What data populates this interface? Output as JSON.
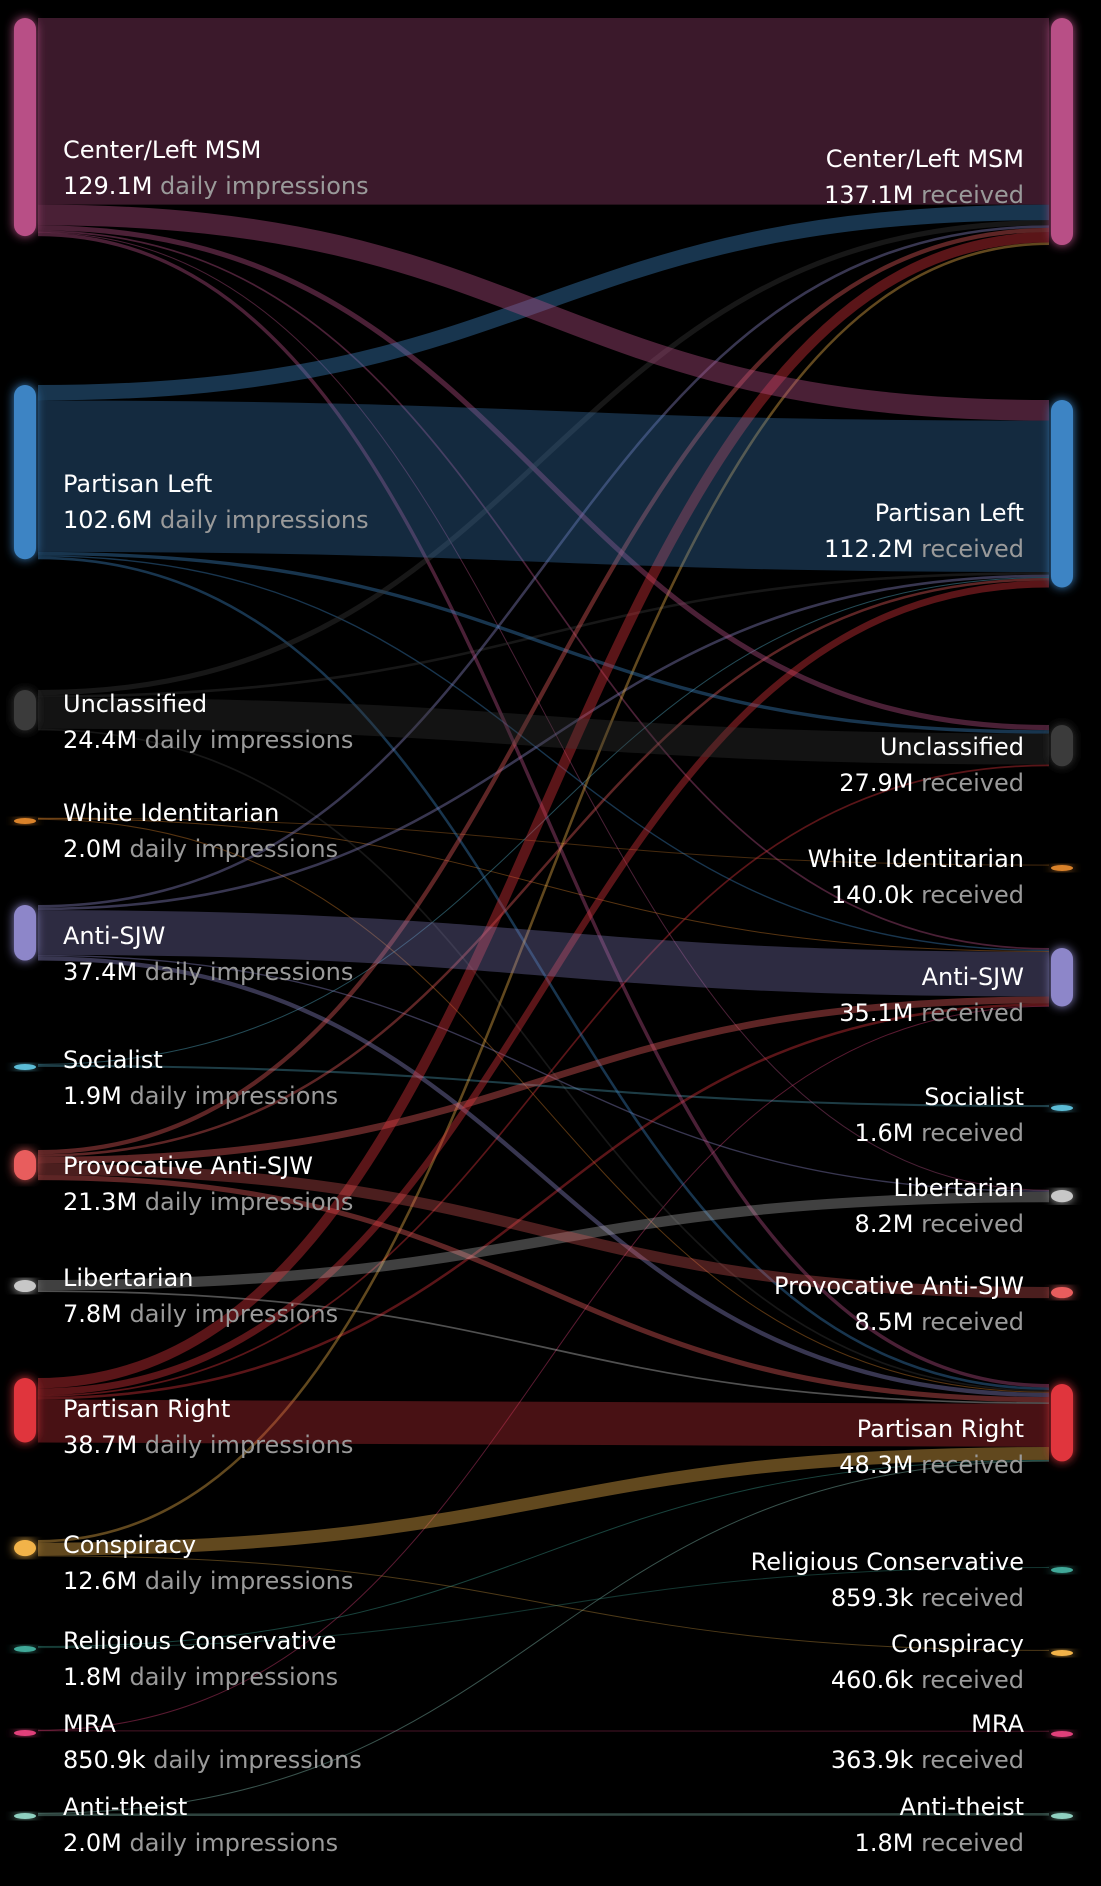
{
  "chart_data": {
    "type": "sankey",
    "source_suffix": "daily impressions",
    "target_suffix": "received",
    "sources": [
      {
        "id": "cl",
        "label": "Center/Left MSM",
        "value_label": "129.1M",
        "color": "#b84f86"
      },
      {
        "id": "pl",
        "label": "Partisan Left",
        "value_label": "102.6M",
        "color": "#3d84c4"
      },
      {
        "id": "un",
        "label": "Unclassified",
        "value_label": "24.4M",
        "color": "#3a3a3a"
      },
      {
        "id": "wi",
        "label": "White Identitarian",
        "value_label": "2.0M",
        "color": "#d9822b"
      },
      {
        "id": "as",
        "label": "Anti-SJW",
        "value_label": "37.4M",
        "color": "#8d86c9"
      },
      {
        "id": "so",
        "label": "Socialist",
        "value_label": "1.9M",
        "color": "#5bbcd6"
      },
      {
        "id": "pas",
        "label": "Provocative Anti-SJW",
        "value_label": "21.3M",
        "color": "#e85d5d"
      },
      {
        "id": "li",
        "label": "Libertarian",
        "value_label": "7.8M",
        "color": "#c7c7c7"
      },
      {
        "id": "pr",
        "label": "Partisan Right",
        "value_label": "38.7M",
        "color": "#e0353d"
      },
      {
        "id": "co",
        "label": "Conspiracy",
        "value_label": "12.6M",
        "color": "#f2b34a"
      },
      {
        "id": "rc",
        "label": "Religious Conservative",
        "value_label": "1.8M",
        "color": "#3fa898"
      },
      {
        "id": "mra",
        "label": "MRA",
        "value_label": "850.9k",
        "color": "#e0407a"
      },
      {
        "id": "at",
        "label": "Anti-theist",
        "value_label": "2.0M",
        "color": "#8fd0c0"
      }
    ],
    "targets": [
      {
        "id": "cl",
        "label": "Center/Left MSM",
        "value_label": "137.1M",
        "color": "#b84f86"
      },
      {
        "id": "pl",
        "label": "Partisan Left",
        "value_label": "112.2M",
        "color": "#3d84c4"
      },
      {
        "id": "un",
        "label": "Unclassified",
        "value_label": "27.9M",
        "color": "#3a3a3a"
      },
      {
        "id": "wi",
        "label": "White Identitarian",
        "value_label": "140.0k",
        "color": "#d9822b"
      },
      {
        "id": "as",
        "label": "Anti-SJW",
        "value_label": "35.1M",
        "color": "#8d86c9"
      },
      {
        "id": "so",
        "label": "Socialist",
        "value_label": "1.6M",
        "color": "#5bbcd6"
      },
      {
        "id": "li",
        "label": "Libertarian",
        "value_label": "8.2M",
        "color": "#c7c7c7"
      },
      {
        "id": "pas",
        "label": "Provocative Anti-SJW",
        "value_label": "8.5M",
        "color": "#e85d5d"
      },
      {
        "id": "pr",
        "label": "Partisan Right",
        "value_label": "48.3M",
        "color": "#e0353d"
      },
      {
        "id": "rc",
        "label": "Religious Conservative",
        "value_label": "859.3k",
        "color": "#3fa898"
      },
      {
        "id": "co",
        "label": "Conspiracy",
        "value_label": "460.6k",
        "color": "#f2b34a"
      },
      {
        "id": "mra",
        "label": "MRA",
        "value_label": "363.9k",
        "color": "#e0407a"
      },
      {
        "id": "at",
        "label": "Anti-theist",
        "value_label": "1.8M",
        "color": "#8fd0c0"
      }
    ],
    "links": [
      {
        "s": "cl",
        "t": "cl",
        "v": 108.5
      },
      {
        "s": "cl",
        "t": "pl",
        "v": 12.0
      },
      {
        "s": "cl",
        "t": "un",
        "v": 3.0
      },
      {
        "s": "cl",
        "t": "pr",
        "v": 2.0
      },
      {
        "s": "cl",
        "t": "as",
        "v": 1.0
      },
      {
        "s": "cl",
        "t": "li",
        "v": 0.3
      },
      {
        "s": "pl",
        "t": "cl",
        "v": 9.0
      },
      {
        "s": "pl",
        "t": "pl",
        "v": 88.0
      },
      {
        "s": "pl",
        "t": "un",
        "v": 2.0
      },
      {
        "s": "pl",
        "t": "pr",
        "v": 1.5
      },
      {
        "s": "pl",
        "t": "as",
        "v": 0.8
      },
      {
        "s": "un",
        "t": "cl",
        "v": 3.0
      },
      {
        "s": "un",
        "t": "pl",
        "v": 1.5
      },
      {
        "s": "un",
        "t": "un",
        "v": 18.0
      },
      {
        "s": "un",
        "t": "pr",
        "v": 1.0
      },
      {
        "s": "wi",
        "t": "pr",
        "v": 0.6
      },
      {
        "s": "wi",
        "t": "as",
        "v": 0.4
      },
      {
        "s": "wi",
        "t": "wi",
        "v": 0.1
      },
      {
        "s": "as",
        "t": "cl",
        "v": 1.5
      },
      {
        "s": "as",
        "t": "pl",
        "v": 1.5
      },
      {
        "s": "as",
        "t": "as",
        "v": 26.0
      },
      {
        "s": "as",
        "t": "pr",
        "v": 2.5
      },
      {
        "s": "as",
        "t": "li",
        "v": 0.8
      },
      {
        "s": "so",
        "t": "so",
        "v": 1.2
      },
      {
        "s": "so",
        "t": "pl",
        "v": 0.5
      },
      {
        "s": "pas",
        "t": "cl",
        "v": 2.5
      },
      {
        "s": "pas",
        "t": "pl",
        "v": 1.5
      },
      {
        "s": "pas",
        "t": "as",
        "v": 4.0
      },
      {
        "s": "pas",
        "t": "pas",
        "v": 6.5
      },
      {
        "s": "pas",
        "t": "pr",
        "v": 3.0
      },
      {
        "s": "li",
        "t": "li",
        "v": 6.0
      },
      {
        "s": "li",
        "t": "pr",
        "v": 1.0
      },
      {
        "s": "pr",
        "t": "cl",
        "v": 6.0
      },
      {
        "s": "pr",
        "t": "pl",
        "v": 4.0
      },
      {
        "s": "pr",
        "t": "pr",
        "v": 25.0
      },
      {
        "s": "pr",
        "t": "as",
        "v": 1.5
      },
      {
        "s": "pr",
        "t": "un",
        "v": 1.0
      },
      {
        "s": "co",
        "t": "cl",
        "v": 1.5
      },
      {
        "s": "co",
        "t": "pr",
        "v": 7.5
      },
      {
        "s": "co",
        "t": "co",
        "v": 0.4
      },
      {
        "s": "rc",
        "t": "rc",
        "v": 0.6
      },
      {
        "s": "rc",
        "t": "pr",
        "v": 0.6
      },
      {
        "s": "mra",
        "t": "mra",
        "v": 0.3
      },
      {
        "s": "mra",
        "t": "as",
        "v": 0.3
      },
      {
        "s": "at",
        "t": "at",
        "v": 1.5
      },
      {
        "s": "at",
        "t": "pr",
        "v": 0.3
      }
    ]
  }
}
